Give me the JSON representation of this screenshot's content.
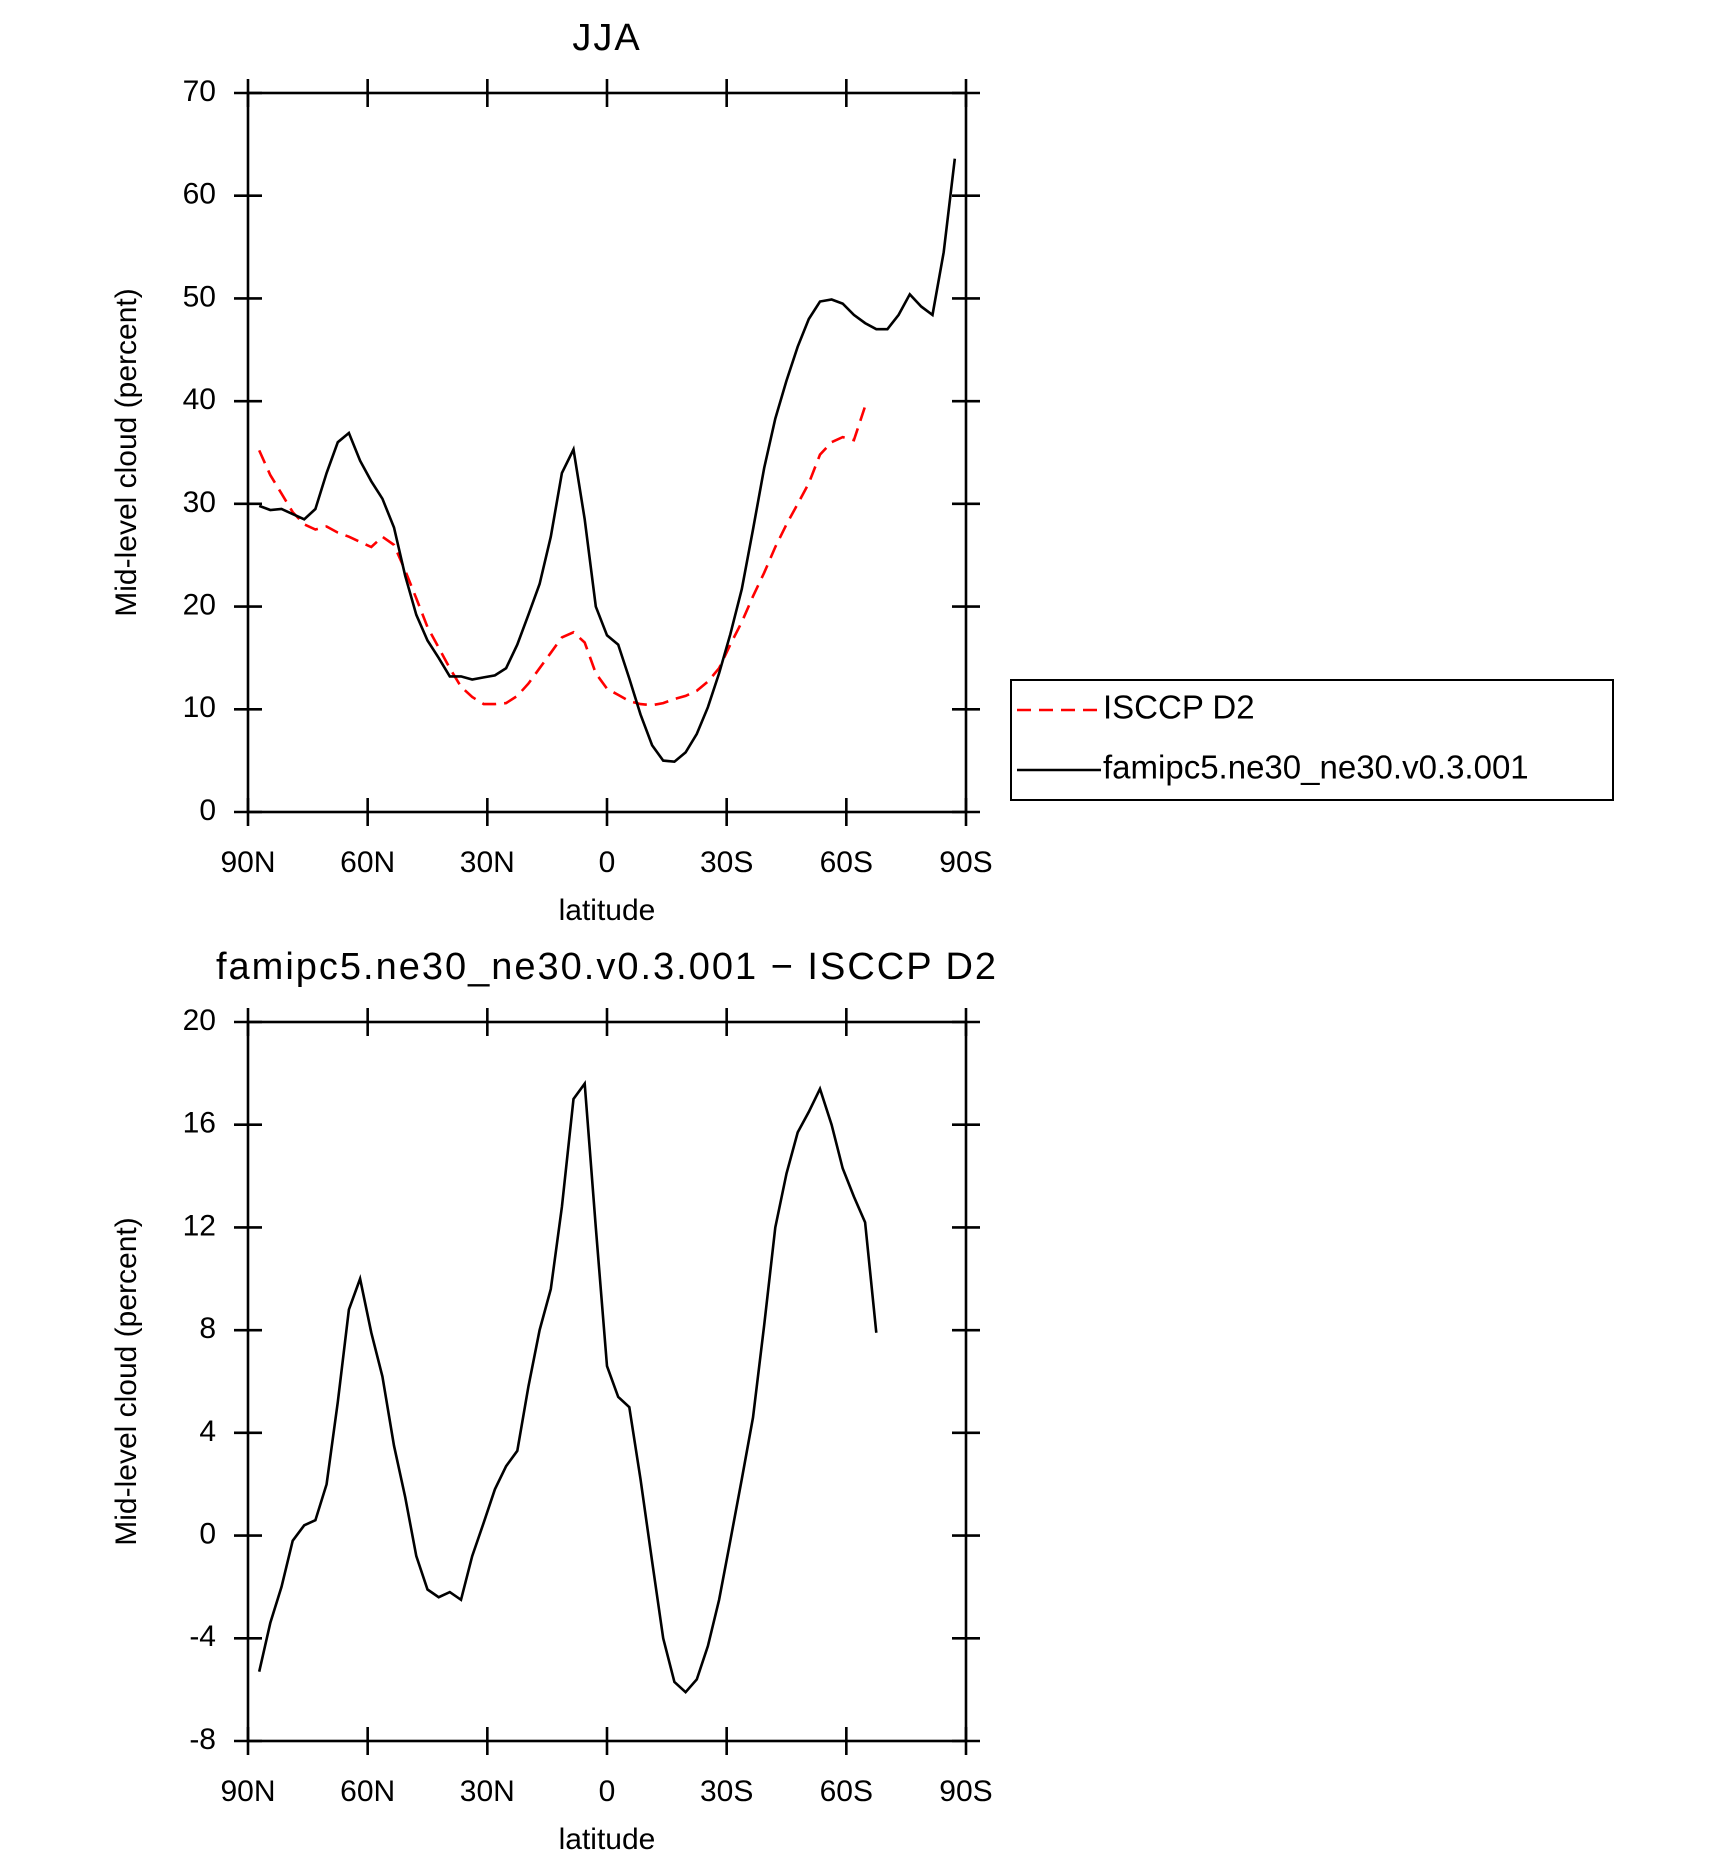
{
  "chart_data": [
    {
      "type": "line",
      "title": "JJA",
      "xlabel": "latitude",
      "ylabel": "Mid-level cloud (percent)",
      "x": [
        87.2,
        84.4,
        81.6,
        78.8,
        75.9,
        73.1,
        70.3,
        67.5,
        64.7,
        61.9,
        59.1,
        56.3,
        53.4,
        50.6,
        47.8,
        45.0,
        42.2,
        39.4,
        36.6,
        33.8,
        30.9,
        28.1,
        25.3,
        22.5,
        19.7,
        16.9,
        14.1,
        11.3,
        8.4,
        5.6,
        2.8,
        0,
        -2.8,
        -5.6,
        -8.4,
        -11.3,
        -14.1,
        -16.9,
        -19.7,
        -22.5,
        -25.3,
        -28.1,
        -30.9,
        -33.8,
        -36.6,
        -39.4,
        -42.2,
        -45.0,
        -47.8,
        -50.6,
        -53.4,
        -56.3,
        -59.1,
        -61.9,
        -64.7,
        -67.5,
        -70.3,
        -73.1,
        -75.9,
        -78.8,
        -81.6,
        -84.4,
        -87.2
      ],
      "series": [
        {
          "name": "ISCCP D2",
          "color": "#ff0000",
          "dashed": true,
          "values": [
            35.2,
            32.8,
            31.0,
            29.2,
            28.0,
            27.5,
            27.8,
            27.2,
            26.8,
            26.3,
            25.8,
            26.8,
            26.0,
            23.5,
            20.8,
            18.0,
            16.0,
            14.0,
            12.2,
            11.2,
            10.5,
            10.5,
            10.6,
            11.3,
            12.5,
            14.0,
            15.5,
            17.0,
            17.5,
            16.5,
            13.5,
            12.0,
            11.4,
            10.8,
            10.5,
            10.4,
            10.6,
            11.0,
            11.3,
            11.8,
            12.7,
            14.0,
            16.3,
            18.5,
            21.0,
            23.3,
            25.8,
            28.0,
            30.0,
            32.0,
            34.8,
            36.0,
            36.5,
            36.2,
            39.5,
            null,
            null,
            null,
            null,
            null,
            null,
            null,
            null
          ]
        },
        {
          "name": "famipc5.ne30_ne30.v0.3.001",
          "color": "#000000",
          "dashed": false,
          "values": [
            29.8,
            29.4,
            29.5,
            29.0,
            28.5,
            29.5,
            33.0,
            36.0,
            36.9,
            34.2,
            32.2,
            30.5,
            27.7,
            23.0,
            19.2,
            16.7,
            15.0,
            13.2,
            13.2,
            12.9,
            13.1,
            13.3,
            14.0,
            16.3,
            19.2,
            22.2,
            26.8,
            33.0,
            35.3,
            28.5,
            20.0,
            17.2,
            16.3,
            13.0,
            9.5,
            6.5,
            5.0,
            4.9,
            5.8,
            7.6,
            10.2,
            13.5,
            17.3,
            21.7,
            27.5,
            33.5,
            38.3,
            42.0,
            45.3,
            48.0,
            49.7,
            49.9,
            49.5,
            48.4,
            47.6,
            47.0,
            47.0,
            48.4,
            50.4,
            49.2,
            48.4,
            54.5,
            63.6
          ]
        }
      ],
      "xlim": [
        90,
        -90
      ],
      "xticks": [
        {
          "value": 90,
          "label": "90N"
        },
        {
          "value": 60,
          "label": "60N"
        },
        {
          "value": 30,
          "label": "30N"
        },
        0,
        {
          "value": -30,
          "label": "30S"
        },
        {
          "value": -60,
          "label": "60S"
        },
        {
          "value": -90,
          "label": "90S"
        }
      ],
      "ylim": [
        0,
        70
      ],
      "yticks": [
        0,
        10,
        20,
        30,
        40,
        50,
        60,
        70
      ],
      "legend": "outside-right"
    },
    {
      "type": "line",
      "title": "famipc5.ne30_ne30.v0.3.001 − ISCCP D2",
      "xlabel": "latitude",
      "ylabel": "Mid-level cloud (percent)",
      "x": [
        87.2,
        84.4,
        81.6,
        78.8,
        75.9,
        73.1,
        70.3,
        67.5,
        64.7,
        61.9,
        59.1,
        56.3,
        53.4,
        50.6,
        47.8,
        45.0,
        42.2,
        39.4,
        36.6,
        33.8,
        30.9,
        28.1,
        25.3,
        22.5,
        19.7,
        16.9,
        14.1,
        11.3,
        8.4,
        5.6,
        2.8,
        0,
        -2.8,
        -5.6,
        -8.4,
        -11.3,
        -14.1,
        -16.9,
        -19.7,
        -22.5,
        -25.3,
        -28.1,
        -30.9,
        -33.8,
        -36.6,
        -39.4,
        -42.2,
        -45.0,
        -47.8,
        -50.6,
        -53.4,
        -56.3,
        -59.1,
        -61.9,
        -64.7,
        -67.5
      ],
      "values": [
        -5.3,
        -3.4,
        -2.0,
        -0.2,
        0.4,
        0.6,
        2.0,
        5.2,
        8.8,
        10.0,
        7.9,
        6.2,
        3.5,
        1.5,
        -0.8,
        -2.1,
        -2.4,
        -2.2,
        -2.5,
        -0.8,
        0.5,
        1.8,
        2.7,
        3.3,
        5.8,
        8.0,
        9.6,
        12.8,
        17.0,
        17.6,
        12.0,
        6.6,
        5.4,
        5.0,
        2.2,
        -1.0,
        -4.0,
        -5.7,
        -6.1,
        -5.6,
        -4.3,
        -2.5,
        -0.2,
        2.2,
        4.6,
        8.2,
        12.0,
        14.1,
        15.7,
        16.5,
        17.4,
        16.0,
        14.3,
        13.2,
        12.2,
        7.9
      ],
      "color": "#000000",
      "xlim": [
        90,
        -90
      ],
      "xticks": [
        {
          "value": 90,
          "label": "90N"
        },
        {
          "value": 60,
          "label": "60N"
        },
        {
          "value": 30,
          "label": "30N"
        },
        0,
        {
          "value": -30,
          "label": "30S"
        },
        {
          "value": -60,
          "label": "60S"
        },
        {
          "value": -90,
          "label": "90S"
        }
      ],
      "ylim": [
        -8,
        20
      ],
      "yticks": [
        -8,
        -4,
        0,
        4,
        8,
        12,
        16,
        20
      ]
    }
  ]
}
